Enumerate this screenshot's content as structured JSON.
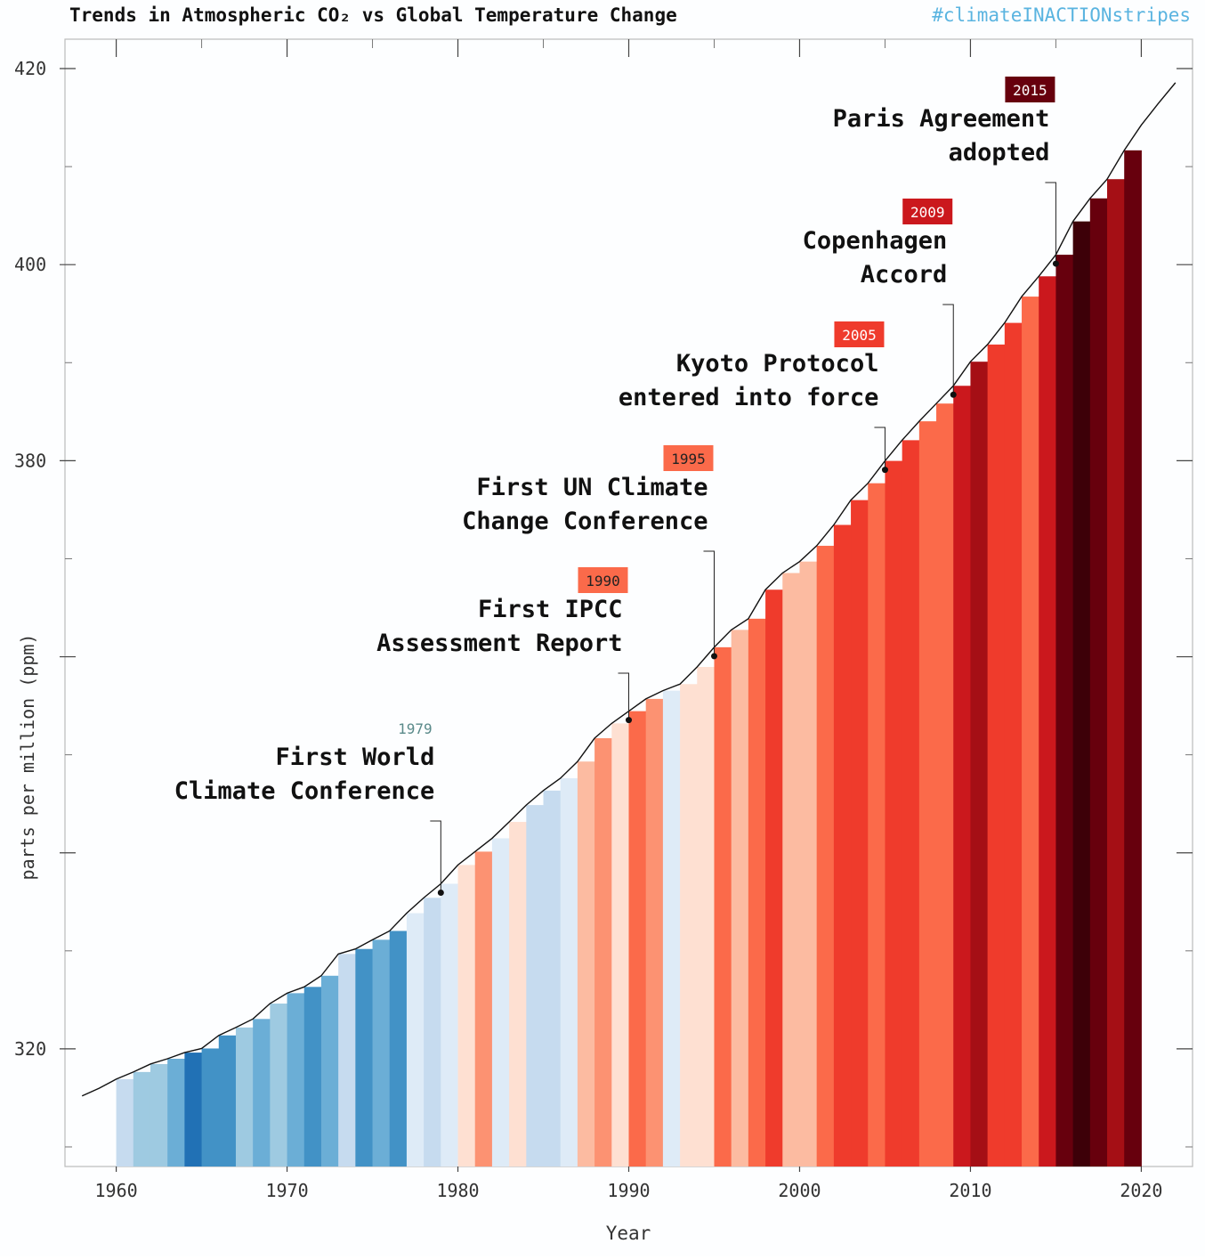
{
  "chart_data": {
    "type": "line",
    "title": "Trends in Atmospheric CO₂ vs Global Temperature Change",
    "subtitle": "#climateINACTIONstripes",
    "x_label": "Year",
    "y_label": "parts per million (ppm)",
    "x": [
      1958,
      1959,
      1960,
      1961,
      1962,
      1963,
      1964,
      1965,
      1966,
      1967,
      1968,
      1969,
      1970,
      1971,
      1972,
      1973,
      1974,
      1975,
      1976,
      1977,
      1978,
      1979,
      1980,
      1981,
      1982,
      1983,
      1984,
      1985,
      1986,
      1987,
      1988,
      1989,
      1990,
      1991,
      1992,
      1993,
      1994,
      1995,
      1996,
      1997,
      1998,
      1999,
      2000,
      2001,
      2002,
      2003,
      2004,
      2005,
      2006,
      2007,
      2008,
      2009,
      2010,
      2011,
      2012,
      2013,
      2014,
      2015,
      2016,
      2017,
      2018,
      2019,
      2020,
      2021,
      2022
    ],
    "series": [
      {
        "color": "#111111",
        "values": [
          315.2,
          315.98,
          316.91,
          317.64,
          318.45,
          318.99,
          319.62,
          320.04,
          321.37,
          322.18,
          323.05,
          324.62,
          325.68,
          326.32,
          327.46,
          329.68,
          330.19,
          331.13,
          332.03,
          333.84,
          335.41,
          336.84,
          338.76,
          340.12,
          341.48,
          343.15,
          344.87,
          346.35,
          347.61,
          349.31,
          351.69,
          353.2,
          354.45,
          355.7,
          356.54,
          357.21,
          358.96,
          360.97,
          362.74,
          363.88,
          366.84,
          368.54,
          369.71,
          371.32,
          373.45,
          375.98,
          377.7,
          379.98,
          382.09,
          384.02,
          385.83,
          387.64,
          390.1,
          391.85,
          394.06,
          396.74,
          398.81,
          401.01,
          404.41,
          406.76,
          408.72,
          411.66,
          414.24,
          416.45,
          418.56
        ]
      }
    ],
    "stripe_years": [
      1960,
      1961,
      1962,
      1963,
      1964,
      1965,
      1966,
      1967,
      1968,
      1969,
      1970,
      1971,
      1972,
      1973,
      1974,
      1975,
      1976,
      1977,
      1978,
      1979,
      1980,
      1981,
      1982,
      1983,
      1984,
      1985,
      1986,
      1987,
      1988,
      1989,
      1990,
      1991,
      1992,
      1993,
      1994,
      1995,
      1996,
      1997,
      1998,
      1999,
      2000,
      2001,
      2002,
      2003,
      2004,
      2005,
      2006,
      2007,
      2008,
      2009,
      2010,
      2011,
      2012,
      2013,
      2014,
      2015,
      2016,
      2017,
      2018,
      2019
    ],
    "stripe_colors": [
      "#c6dbef",
      "#9ecae1",
      "#9ecae1",
      "#6baed6",
      "#2171b5",
      "#4292c6",
      "#4292c6",
      "#9ecae1",
      "#6baed6",
      "#9ecae1",
      "#6baed6",
      "#4292c6",
      "#6baed6",
      "#c6dbef",
      "#4292c6",
      "#6baed6",
      "#4292c6",
      "#deebf7",
      "#c6dbef",
      "#deebf7",
      "#fee0d2",
      "#fc9272",
      "#deebf7",
      "#fee0d2",
      "#c6dbef",
      "#c6dbef",
      "#deebf7",
      "#fcbba1",
      "#fc9272",
      "#fee0d2",
      "#fb6a4a",
      "#fc9272",
      "#deebf7",
      "#fee0d2",
      "#fee0d2",
      "#fb6a4a",
      "#fcbba1",
      "#fb6a4a",
      "#ef3b2c",
      "#fcbba1",
      "#fcbba1",
      "#fb6a4a",
      "#ef3b2c",
      "#ef3b2c",
      "#fb6a4a",
      "#ef3b2c",
      "#ef3b2c",
      "#fb6a4a",
      "#fb6a4a",
      "#cb181d",
      "#a50f15",
      "#ef3b2c",
      "#ef3b2c",
      "#fb6a4a",
      "#cb181d",
      "#67000d",
      "#3d0008",
      "#67000d",
      "#a50f15",
      "#67000d"
    ],
    "annotations": [
      {
        "year": 1979,
        "text": [
          "First World",
          "Climate Conference"
        ]
      },
      {
        "year": 1990,
        "text": [
          "First IPCC",
          "Assessment Report"
        ]
      },
      {
        "year": 1995,
        "text": [
          "First UN Climate",
          "Change Conference"
        ]
      },
      {
        "year": 2005,
        "text": [
          "Kyoto Protocol",
          "entered into force"
        ]
      },
      {
        "year": 2009,
        "text": [
          "Copenhagen",
          "Accord"
        ]
      },
      {
        "year": 2015,
        "text": [
          "Paris Agreement",
          "adopted"
        ]
      }
    ],
    "xlim": [
      1957,
      2023
    ],
    "xticks": [
      1960,
      1970,
      1980,
      1990,
      2000,
      2010,
      2020
    ],
    "xminor": [
      1965,
      1975,
      1985,
      1995,
      2005,
      2015
    ],
    "ylim": [
      308,
      423
    ],
    "yticks": [
      320,
      {
        "value": 340,
        "label": null
      },
      {
        "value": 360,
        "label": null
      },
      380,
      400,
      420
    ],
    "yminor": [
      310,
      330,
      350,
      370,
      390,
      410
    ]
  }
}
